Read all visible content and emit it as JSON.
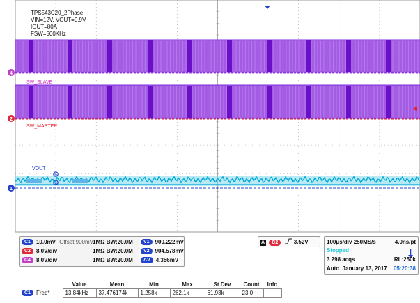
{
  "colors": {
    "background": "#ffffff",
    "grid_line": "#9a9a9a",
    "ch1": "#00a8d8",
    "ch1_pill": "#2244cc",
    "ch2": "#e8202a",
    "ch2_pill": "#e02a3a",
    "ch4": "#9a48e0",
    "ch4_pill": "#c040c8",
    "ch4_dark": "#6a10c8",
    "vbar": "#2244cc",
    "status": "#21c8d8",
    "time": "#1a66d8"
  },
  "annotation": {
    "line1": "TPS543C20_2Phase",
    "line2": "VIN=12V, VOUT=0.9V",
    "line3": "IOUT=80A",
    "line4": "FSW=500KHz"
  },
  "waveforms": {
    "sw_slave_label": "SW_SLAVE",
    "sw_master_label": "SW_MASTER",
    "vout_label": "VOUT",
    "marker_a": "a",
    "marker_b": "b"
  },
  "ch_markers": {
    "ch4": "4",
    "ch2": "2",
    "ch1": "1"
  },
  "channels": [
    {
      "id": "C1",
      "scale": "10.0mV",
      "offset": "Offset:900mV",
      "impedance": "1MΩ",
      "bw": "BW:20.0M"
    },
    {
      "id": "C2",
      "scale": "8.0V/div",
      "offset": "",
      "impedance": "1MΩ",
      "bw": "BW:20.0M"
    },
    {
      "id": "C4",
      "scale": "8.0V/div",
      "offset": "",
      "impedance": "1MΩ",
      "bw": "BW:20.0M"
    }
  ],
  "cursors": [
    {
      "label": "V1",
      "value": "900.222mV"
    },
    {
      "label": "V2",
      "value": "904.578mV"
    },
    {
      "label": "ΔV",
      "value": "4.356mV"
    }
  ],
  "trigger": {
    "mode": "A",
    "source": "C2",
    "slope_icon": "rising-edge",
    "level": "3.52V"
  },
  "horizontal": {
    "scale": "100μs/div",
    "sample_rate": "250MS/s",
    "resolution": "4.0ns/pt",
    "state": "Stopped",
    "acquisitions": "3 298 acqs",
    "record_length": "RL:250k",
    "mode": "Auto",
    "date": "January 13, 2017",
    "time": "05:20:38"
  },
  "measurement": {
    "headers": [
      "Value",
      "Mean",
      "Min",
      "Max",
      "St Dev",
      "Count",
      "Info"
    ],
    "row": {
      "source": "C1",
      "name": "Freq*",
      "cells": [
        "13.84kHz",
        "37.476174k",
        "1.258k",
        "262.1k",
        "61.93k",
        "23.0",
        ""
      ]
    }
  }
}
